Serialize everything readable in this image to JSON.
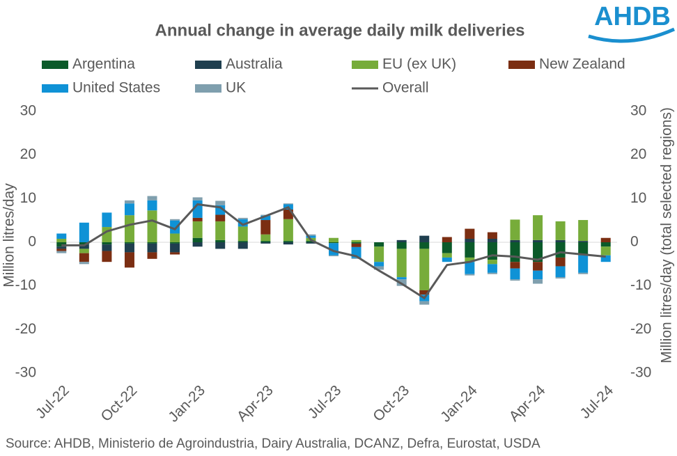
{
  "logo": "AHDB",
  "chart_data": {
    "type": "bar",
    "title": "Annual change in average daily milk deliveries",
    "y_label": "Million litres/day",
    "y2_label": "Million litres/day (total selected regions)",
    "source": "Source: AHDB, Ministerio de Agroindustria, Dairy Australia, DCANZ, Defra, Eurostat, USDA",
    "stacked": true,
    "categories": [
      "Jul-22",
      null,
      null,
      "Oct-22",
      null,
      null,
      "Jan-23",
      null,
      null,
      "Apr-23",
      null,
      null,
      "Jul-23",
      null,
      null,
      "Oct-23",
      null,
      null,
      "Jan-24",
      null,
      null,
      "Apr-24",
      null,
      null,
      "Jul-24"
    ],
    "series": [
      {
        "name": "Argentina",
        "color": "#0b5a2a",
        "values": [
          -1,
          -0.5,
          -0.5,
          -0.3,
          -0.3,
          -0.3,
          1,
          0.5,
          0.3,
          0.3,
          0.3,
          0.3,
          -0.2,
          -0.3,
          -1,
          -1.5,
          -1.5,
          -2.5,
          -3.5,
          -4,
          -4.5,
          -4.5,
          -3.5,
          -3,
          -1
        ]
      },
      {
        "name": "Australia",
        "color": "#1f3f4f",
        "values": [
          -0.5,
          -1,
          -1.5,
          -2,
          -2,
          -2,
          -1,
          -1.5,
          -1.5,
          -0.3,
          -0.5,
          -0.3,
          0,
          0,
          0,
          0.5,
          1.5,
          0,
          0.8,
          0.8,
          0.5,
          0.5,
          0.5,
          0.3,
          0
        ]
      },
      {
        "name": "EU (ex UK)",
        "color": "#77ac3a",
        "values": [
          0.8,
          -1,
          3.5,
          6.2,
          7.3,
          2,
          3.8,
          4.3,
          3.3,
          1.5,
          5,
          0.7,
          1,
          0.5,
          -3.5,
          -6.5,
          -9.5,
          -1,
          -1,
          -1,
          4.7,
          5.7,
          4.3,
          4.8,
          -2
        ]
      },
      {
        "name": "New Zealand",
        "color": "#7b2e12",
        "values": [
          -0.5,
          -2,
          -2.5,
          -3.5,
          -1.5,
          -0.5,
          0.8,
          1.5,
          0,
          3.3,
          2.2,
          0,
          0,
          -0.8,
          0,
          0,
          -1,
          1.2,
          2.3,
          1.5,
          -1.5,
          -2,
          -2,
          0,
          1
        ]
      },
      {
        "name": "United States",
        "color": "#0f92d6",
        "values": [
          1.2,
          4.5,
          3.3,
          2.7,
          2.3,
          3,
          4,
          2.2,
          1.7,
          1,
          1.2,
          0.5,
          -2.8,
          -2.5,
          -1,
          -0.5,
          -1.5,
          -1,
          -2.8,
          -2,
          -2.5,
          -2,
          -2.5,
          -4,
          -1.5
        ]
      },
      {
        "name": "UK",
        "color": "#7f9fae",
        "values": [
          -0.5,
          -0.5,
          0,
          0.7,
          1,
          0.3,
          0.7,
          1,
          0.3,
          0.2,
          0.2,
          0.3,
          -0.2,
          -0.2,
          -0.8,
          -1.5,
          -0.8,
          0,
          -0.3,
          -0.3,
          -0.3,
          -1,
          -0.3,
          -0.3,
          0
        ]
      },
      {
        "name": "Overall",
        "type": "line",
        "axis": "y2",
        "color": "#595959",
        "values": [
          -0.7,
          -0.7,
          2.5,
          4,
          5,
          3,
          8.7,
          8,
          4,
          6,
          8,
          0.5,
          -2,
          -3.2,
          -6.5,
          -9.5,
          -12.8,
          -5.2,
          -4.5,
          -3,
          -3.3,
          -4,
          -2.3,
          -2.8,
          -3.3
        ]
      }
    ],
    "ylim": [
      -30,
      30
    ],
    "yticks": [
      -30,
      -20,
      -10,
      0,
      10,
      20,
      30
    ],
    "y2lim": [
      -30,
      30
    ],
    "y2ticks": [
      -30,
      -20,
      -10,
      0,
      10,
      20,
      30
    ],
    "grid": false
  }
}
